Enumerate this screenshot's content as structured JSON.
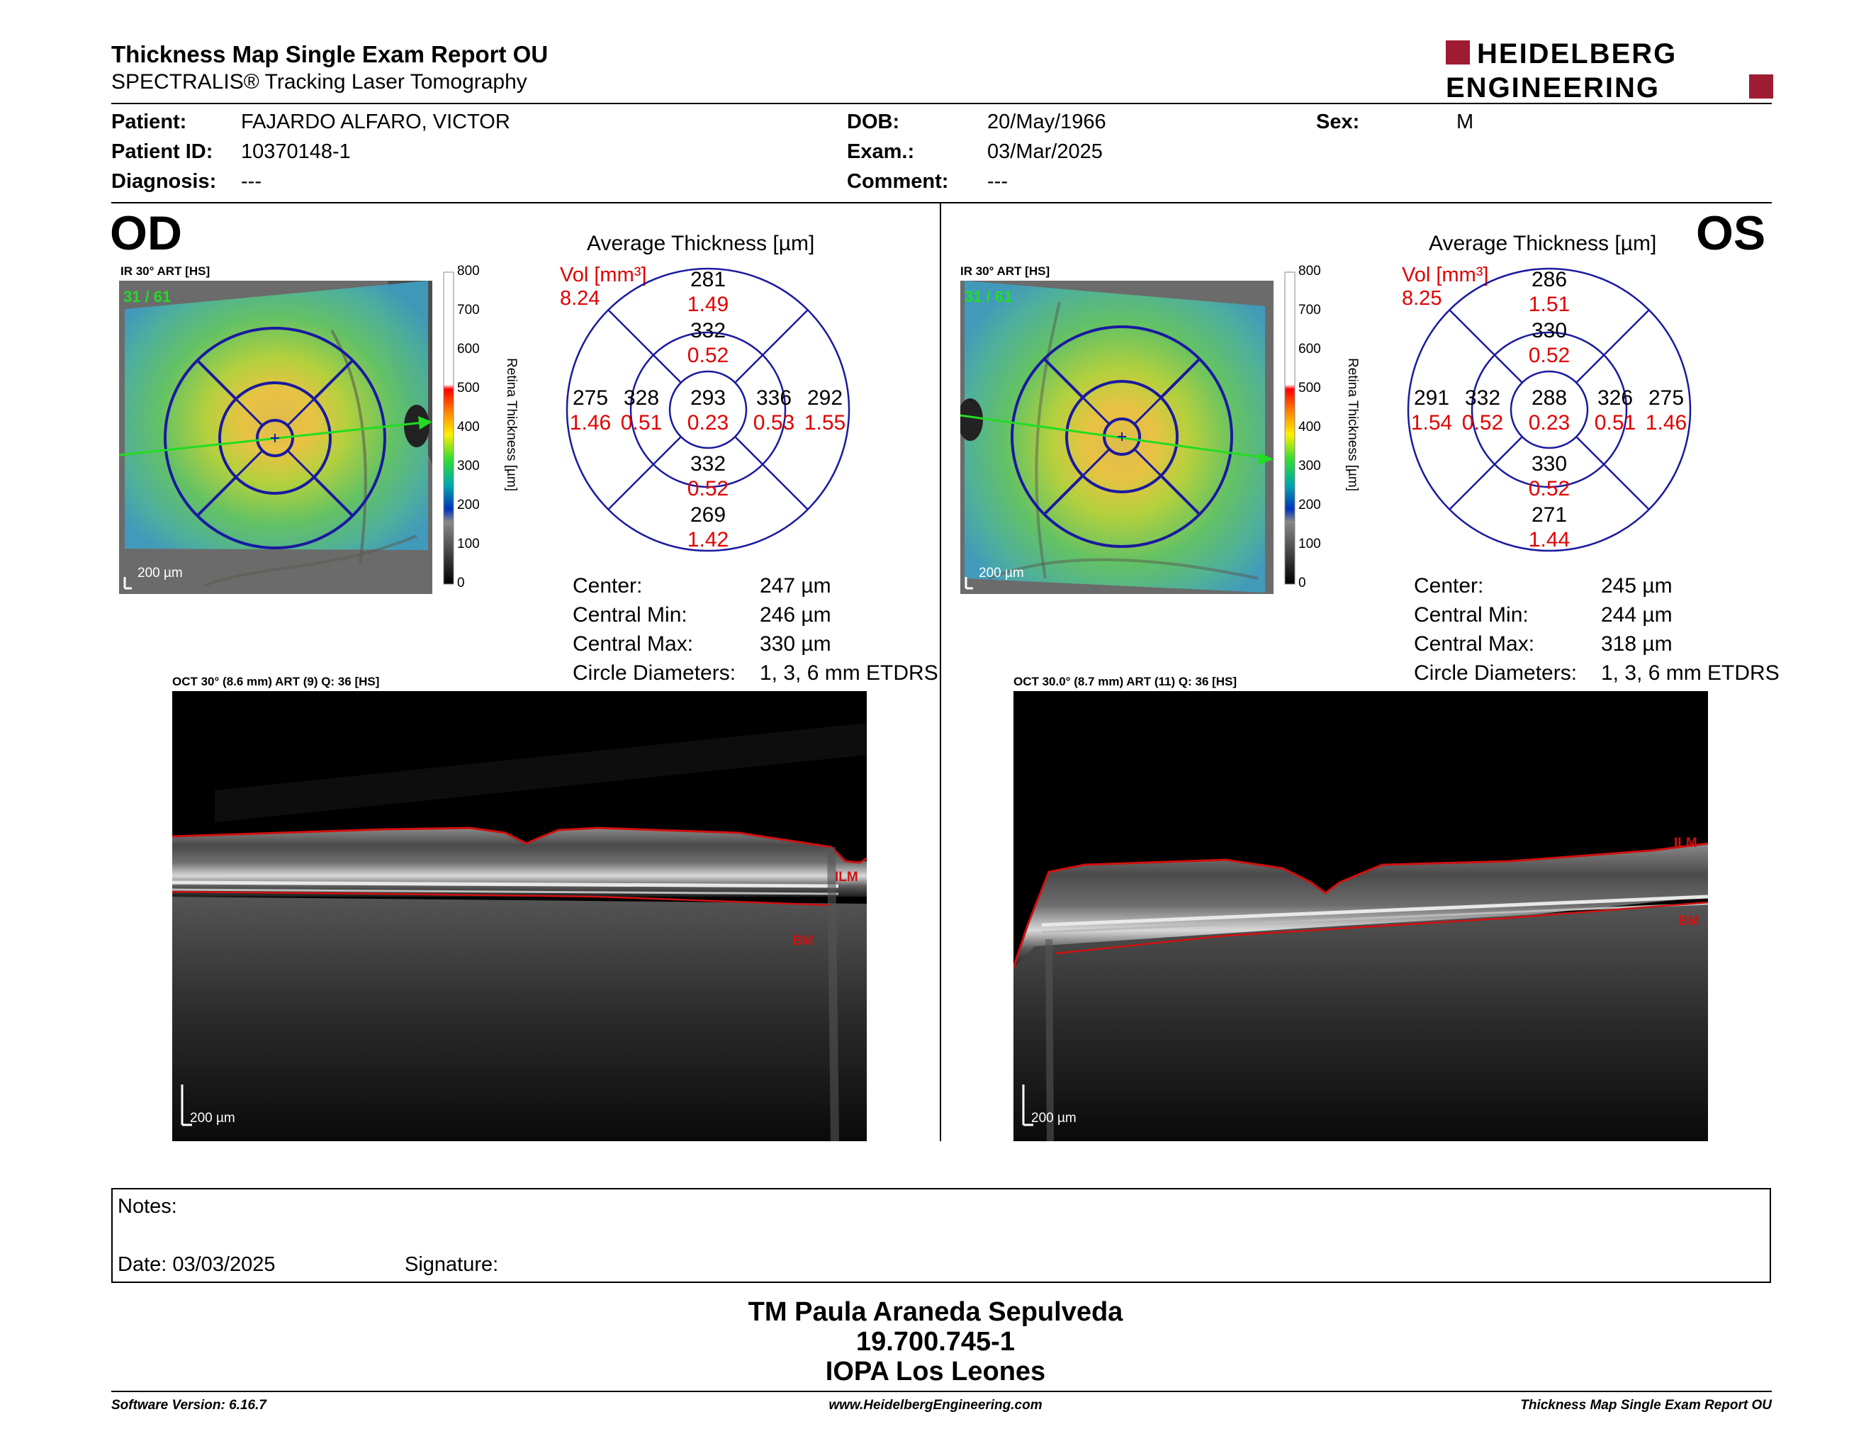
{
  "header": {
    "title": "Thickness Map Single Exam Report OU",
    "subtitle": "SPECTRALIS® Tracking Laser Tomography",
    "logo_line1": "HEIDELBERG",
    "logo_line2": "ENGINEERING",
    "brand_color": "#9e1b32"
  },
  "patient": {
    "patient_label": "Patient:",
    "patient_value": "FAJARDO ALFARO, VICTOR",
    "id_label": "Patient ID:",
    "id_value": "10370148-1",
    "diagnosis_label": "Diagnosis:",
    "diagnosis_value": "---",
    "dob_label": "DOB:",
    "dob_value": "20/May/1966",
    "exam_label": "Exam.:",
    "exam_value": "03/Mar/2025",
    "comment_label": "Comment:",
    "comment_value": "---",
    "sex_label": "Sex:",
    "sex_value": "M"
  },
  "od": {
    "eye_label": "OD",
    "ir_caption": "IR 30° ART [HS]",
    "frame_counter": "31 / 61",
    "scale_bar": "200 µm",
    "colorbar_ticks": [
      "800",
      "700",
      "600",
      "500",
      "400",
      "300",
      "200",
      "100",
      "0"
    ],
    "colorbar_label": "Retina Thickness [µm]",
    "avg_title": "Average Thickness [µm]",
    "vol_label": "Vol [mm³]",
    "vol_total": "8.24",
    "sectors": {
      "outer_sup": {
        "t": "281",
        "v": "1.49"
      },
      "inner_sup": {
        "t": "332",
        "v": "0.52"
      },
      "outer_left": {
        "t": "275",
        "v": "1.46"
      },
      "inner_left": {
        "t": "328",
        "v": "0.51"
      },
      "center": {
        "t": "293",
        "v": "0.23"
      },
      "inner_right": {
        "t": "336",
        "v": "0.53"
      },
      "outer_right": {
        "t": "292",
        "v": "1.55"
      },
      "inner_inf": {
        "t": "332",
        "v": "0.52"
      },
      "outer_inf": {
        "t": "269",
        "v": "1.42"
      }
    },
    "stats": [
      {
        "label": "Center:",
        "value": "247 µm"
      },
      {
        "label": "Central Min:",
        "value": "246 µm"
      },
      {
        "label": "Central Max:",
        "value": "330 µm"
      },
      {
        "label": "Circle Diameters:",
        "value": "1, 3, 6 mm ETDRS"
      }
    ],
    "oct_caption": "OCT 30° (8.6 mm) ART (9) Q: 36 [HS]",
    "oct_scale": "200 µm",
    "ilm_label": "ILM",
    "bm_label": "BM"
  },
  "os": {
    "eye_label": "OS",
    "ir_caption": "IR 30° ART [HS]",
    "frame_counter": "31 / 61",
    "scale_bar": "200 µm",
    "colorbar_ticks": [
      "800",
      "700",
      "600",
      "500",
      "400",
      "300",
      "200",
      "100",
      "0"
    ],
    "colorbar_label": "Retina Thickness [µm]",
    "avg_title": "Average Thickness [µm]",
    "vol_label": "Vol [mm³]",
    "vol_total": "8.25",
    "sectors": {
      "outer_sup": {
        "t": "286",
        "v": "1.51"
      },
      "inner_sup": {
        "t": "330",
        "v": "0.52"
      },
      "outer_left": {
        "t": "291",
        "v": "1.54"
      },
      "inner_left": {
        "t": "332",
        "v": "0.52"
      },
      "center": {
        "t": "288",
        "v": "0.23"
      },
      "inner_right": {
        "t": "326",
        "v": "0.51"
      },
      "outer_right": {
        "t": "275",
        "v": "1.46"
      },
      "inner_inf": {
        "t": "330",
        "v": "0.52"
      },
      "outer_inf": {
        "t": "271",
        "v": "1.44"
      }
    },
    "stats": [
      {
        "label": "Center:",
        "value": "245 µm"
      },
      {
        "label": "Central Min:",
        "value": "244 µm"
      },
      {
        "label": "Central Max:",
        "value": "318 µm"
      },
      {
        "label": "Circle Diameters:",
        "value": "1, 3, 6 mm ETDRS"
      }
    ],
    "oct_caption": "OCT 30.0° (8.7 mm) ART (11) Q: 36 [HS]",
    "oct_scale": "200 µm",
    "ilm_label": "ILM",
    "bm_label": "BM"
  },
  "notes": {
    "notes_label": "Notes:",
    "date_label": "Date: 03/03/2025",
    "signature_label": "Signature:"
  },
  "signature_block": {
    "line1": "TM Paula Araneda Sepulveda",
    "line2": "19.700.745-1",
    "line3": "IOPA Los Leones"
  },
  "footer": {
    "left": "Software Version: 6.16.7",
    "center": "www.HeidelbergEngineering.com",
    "right": "Thickness Map Single Exam Report OU"
  }
}
